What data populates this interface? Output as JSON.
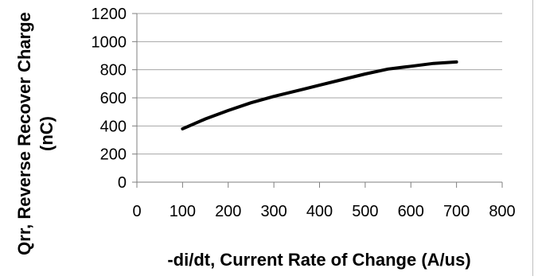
{
  "chart_data": {
    "type": "line",
    "title": "",
    "xlabel": "-di/dt, Current Rate of Change (A/us)",
    "ylabel_line1": "Qrr, Reverse Recover Charge",
    "ylabel_line2": "(nC)",
    "xlim": [
      0,
      800
    ],
    "ylim": [
      0,
      1200
    ],
    "x_ticks": [
      0,
      100,
      200,
      300,
      400,
      500,
      600,
      700,
      800
    ],
    "y_ticks": [
      0,
      200,
      400,
      600,
      800,
      1000,
      1200
    ],
    "grid": true,
    "legend": "none",
    "series": [
      {
        "color": "#000000",
        "x": [
          100,
          150,
          200,
          250,
          300,
          350,
          400,
          450,
          500,
          550,
          600,
          650,
          700
        ],
        "y": [
          380,
          450,
          510,
          565,
          610,
          650,
          690,
          730,
          770,
          805,
          825,
          845,
          855
        ]
      }
    ]
  }
}
